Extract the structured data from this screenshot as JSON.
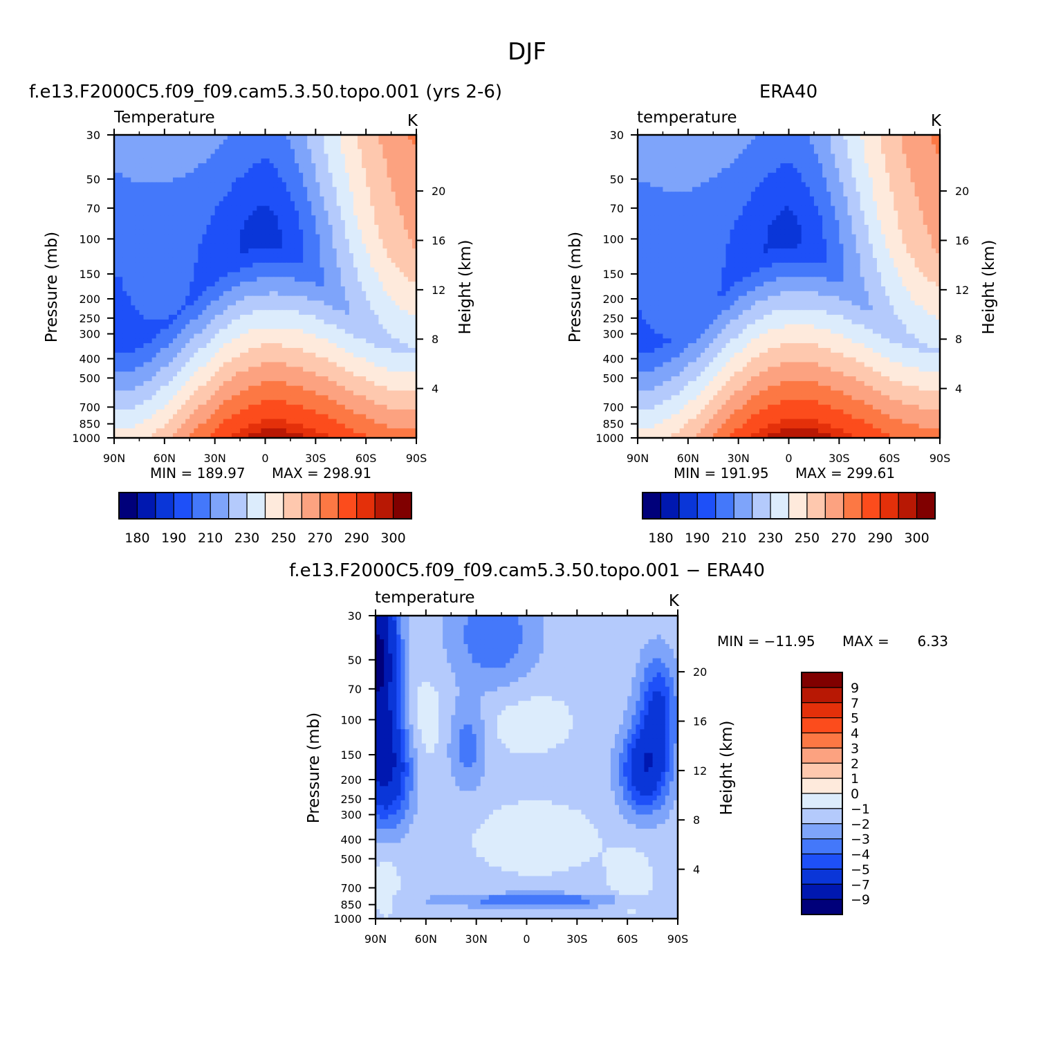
{
  "season": "DJF",
  "colors": {
    "abs": [
      "#00007a",
      "#0018b0",
      "#0a36d8",
      "#1e50f8",
      "#4478fa",
      "#7ea4fa",
      "#b4cafc",
      "#dcecfc",
      "#feeadc",
      "#fec8ae",
      "#fca280",
      "#fc7844",
      "#fc4c1c",
      "#e4300a",
      "#b81804",
      "#800000"
    ],
    "diff": [
      "#00007a",
      "#0018b0",
      "#0a36d8",
      "#1e50f8",
      "#4478fa",
      "#7ea4fa",
      "#b4cafc",
      "#dcecfc",
      "#feeadc",
      "#fec8ae",
      "#fca280",
      "#fc7844",
      "#fc4c1c",
      "#e4300a",
      "#b81804",
      "#800000"
    ]
  },
  "chart_data": [
    {
      "type": "heatmap",
      "title": "f.e13.F2000C5.f09_f09.cam5.3.50.topo.001 (yrs 2-6)",
      "subtitle_left": "Temperature",
      "subtitle_right": "K",
      "ylabel": "Pressure (mb)",
      "ylabel_right": "Height (km)",
      "x_ticks": [
        "90N",
        "60N",
        "30N",
        "0",
        "30S",
        "60S",
        "90S"
      ],
      "y_ticks": [
        "30",
        "50",
        "70",
        "100",
        "150",
        "200",
        "250",
        "300",
        "400",
        "500",
        "700",
        "850",
        "1000"
      ],
      "y_ticks_right": [
        "20",
        "16",
        "12",
        "8",
        "4"
      ],
      "min_label": "MIN = 189.97",
      "max_label": "MAX = 298.91",
      "min": 189.97,
      "max": 298.91,
      "colorbar_labels": [
        "180",
        "190",
        "210",
        "230",
        "250",
        "270",
        "290",
        "300"
      ]
    },
    {
      "type": "heatmap",
      "title": "ERA40",
      "subtitle_left": "temperature",
      "subtitle_right": "K",
      "ylabel": "Pressure (mb)",
      "ylabel_right": "Height (km)",
      "x_ticks": [
        "90N",
        "60N",
        "30N",
        "0",
        "30S",
        "60S",
        "90S"
      ],
      "y_ticks": [
        "30",
        "50",
        "70",
        "100",
        "150",
        "200",
        "250",
        "300",
        "400",
        "500",
        "700",
        "850",
        "1000"
      ],
      "y_ticks_right": [
        "20",
        "16",
        "12",
        "8",
        "4"
      ],
      "min_label": "MIN = 191.95",
      "max_label": "MAX = 299.61",
      "min": 191.95,
      "max": 299.61,
      "colorbar_labels": [
        "180",
        "190",
        "210",
        "230",
        "250",
        "270",
        "290",
        "300"
      ]
    },
    {
      "type": "heatmap",
      "title": "f.e13.F2000C5.f09_f09.cam5.3.50.topo.001 − ERA40",
      "subtitle_left": "temperature",
      "subtitle_right": "K",
      "ylabel": "Pressure (mb)",
      "ylabel_right": "Height (km)",
      "x_ticks": [
        "90N",
        "60N",
        "30N",
        "0",
        "30S",
        "60S",
        "90S"
      ],
      "y_ticks": [
        "30",
        "50",
        "70",
        "100",
        "150",
        "200",
        "250",
        "300",
        "400",
        "500",
        "700",
        "850",
        "1000"
      ],
      "y_ticks_right": [
        "20",
        "16",
        "12",
        "8",
        "4"
      ],
      "min_label": "MIN = −11.95",
      "max_label": "MAX =",
      "max_value_label": "6.33",
      "min": -11.95,
      "max": 6.33,
      "colorbar_labels": [
        "9",
        "7",
        "5",
        "4",
        "3",
        "2",
        "1",
        "0",
        "−1",
        "−2",
        "−3",
        "−4",
        "−5",
        "−7",
        "−9"
      ]
    }
  ]
}
